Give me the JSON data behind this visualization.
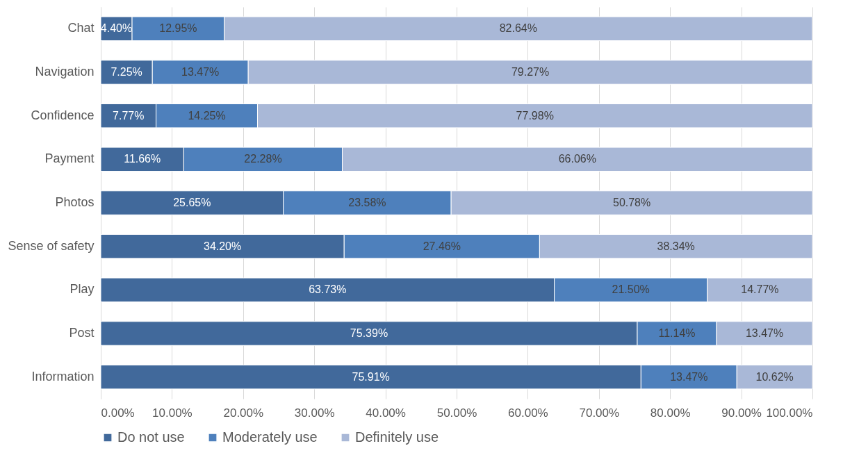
{
  "chart_data": {
    "type": "bar",
    "orientation": "horizontal",
    "stacked": true,
    "categories": [
      "Chat",
      "Navigation",
      "Confidence",
      "Payment",
      "Photos",
      "Sense of safety",
      "Play",
      "Post",
      "Information"
    ],
    "series": [
      {
        "name": "Do not use",
        "color": "#41699b",
        "values": [
          4.4,
          7.25,
          7.77,
          11.66,
          25.65,
          34.2,
          63.73,
          75.39,
          75.91
        ],
        "value_labels": [
          "4.40%",
          "7.25%",
          "7.77%",
          "11.66%",
          "25.65%",
          "34.20%",
          "63.73%",
          "75.39%",
          "75.91%"
        ]
      },
      {
        "name": "Moderately use",
        "color": "#4e80bc",
        "values": [
          12.95,
          13.47,
          14.25,
          22.28,
          23.58,
          27.46,
          21.5,
          11.14,
          13.47
        ],
        "value_labels": [
          "12.95%",
          "13.47%",
          "14.25%",
          "22.28%",
          "23.58%",
          "27.46%",
          "21.50%",
          "11.14%",
          "13.47%"
        ]
      },
      {
        "name": "Definitely use",
        "color": "#a9b8d7",
        "values": [
          82.64,
          79.27,
          77.98,
          66.06,
          50.78,
          38.34,
          14.77,
          13.47,
          10.62
        ],
        "value_labels": [
          "82.64%",
          "79.27%",
          "77.98%",
          "66.06%",
          "50.78%",
          "38.34%",
          "14.77%",
          "13.47%",
          "10.62%"
        ]
      }
    ],
    "xlim": [
      0,
      100
    ],
    "xticks": [
      {
        "value": 0,
        "label": "0.00%"
      },
      {
        "value": 10,
        "label": "10.00%"
      },
      {
        "value": 20,
        "label": "20.00%"
      },
      {
        "value": 30,
        "label": "30.00%"
      },
      {
        "value": 40,
        "label": "40.00%"
      },
      {
        "value": 50,
        "label": "50.00%"
      },
      {
        "value": 60,
        "label": "60.00%"
      },
      {
        "value": 70,
        "label": "70.00%"
      },
      {
        "value": 80,
        "label": "80.00%"
      },
      {
        "value": 90,
        "label": "90.00%"
      },
      {
        "value": 100,
        "label": "100.00%"
      }
    ],
    "grid": "x",
    "legend": "bottom"
  }
}
